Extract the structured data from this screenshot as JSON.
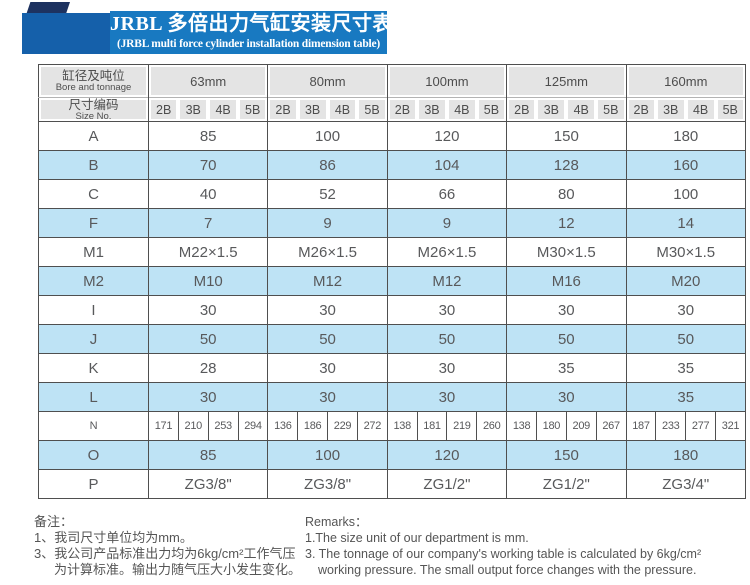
{
  "banner": {
    "title": "JRBL 多倍出力气缸安装尺寸表",
    "subtitle": "(JRBL multi force cylinder installation dimension table)"
  },
  "colors": {
    "banner_blue": "#1879c1",
    "square_blue": "#1560aa",
    "navy": "#1d3260",
    "header_grey": "#e4e4e4",
    "row_blue": "#bee3f5",
    "border_dark": "#4f4f4f",
    "text_grey": "#58595b"
  },
  "table": {
    "header": {
      "col1_row1_zh": "缸径及吨位",
      "col1_row1_en": "Bore and tonnage",
      "col1_row2_zh": "尺寸编码",
      "col1_row2_en": "Size No.",
      "bores": [
        "63mm",
        "80mm",
        "100mm",
        "125mm",
        "160mm"
      ],
      "size_codes": [
        "2B",
        "3B",
        "4B",
        "5B"
      ]
    },
    "rows": [
      {
        "label": "A",
        "shade": false,
        "values": [
          "85",
          "100",
          "120",
          "150",
          "180"
        ]
      },
      {
        "label": "B",
        "shade": true,
        "values": [
          "70",
          "86",
          "104",
          "128",
          "160"
        ]
      },
      {
        "label": "C",
        "shade": false,
        "values": [
          "40",
          "52",
          "66",
          "80",
          "100"
        ]
      },
      {
        "label": "F",
        "shade": true,
        "values": [
          "7",
          "9",
          "9",
          "12",
          "14"
        ]
      },
      {
        "label": "M1",
        "shade": false,
        "values": [
          "M22×1.5",
          "M26×1.5",
          "M26×1.5",
          "M30×1.5",
          "M30×1.5"
        ]
      },
      {
        "label": "M2",
        "shade": true,
        "values": [
          "M10",
          "M12",
          "M12",
          "M16",
          "M20"
        ]
      },
      {
        "label": "I",
        "shade": false,
        "values": [
          "30",
          "30",
          "30",
          "30",
          "30"
        ]
      },
      {
        "label": "J",
        "shade": true,
        "values": [
          "50",
          "50",
          "50",
          "50",
          "50"
        ]
      },
      {
        "label": "K",
        "shade": false,
        "values": [
          "28",
          "30",
          "30",
          "35",
          "35"
        ]
      },
      {
        "label": "L",
        "shade": true,
        "values": [
          "30",
          "30",
          "30",
          "30",
          "35"
        ]
      },
      {
        "label": "N",
        "shade": false,
        "values": [
          "171",
          "210",
          "253",
          "294",
          "136",
          "186",
          "229",
          "272",
          "138",
          "181",
          "219",
          "260",
          "138",
          "180",
          "209",
          "267",
          "187",
          "233",
          "277",
          "321"
        ]
      },
      {
        "label": "O",
        "shade": true,
        "values": [
          "85",
          "100",
          "120",
          "150",
          "180"
        ]
      },
      {
        "label": "P",
        "shade": false,
        "values": [
          "ZG3/8\"",
          "ZG3/8\"",
          "ZG1/2\"",
          "ZG1/2\"",
          "ZG3/4\""
        ]
      }
    ]
  },
  "remarks": {
    "zh": {
      "heading": "备注：",
      "line1": "1、我司尺寸单位均为mm。",
      "line2": "3、我公司产品标准出力均为6kg/cm²工作气压",
      "line3": "为计算标准。输出力随气压大小发生变化。"
    },
    "en": {
      "heading": "Remarks：",
      "line1": "1.The size unit of our department is mm.",
      "line2": "3. The tonnage of our company's working table is calculated by 6kg/cm²",
      "line3": "working pressure. The small output force changes with the pressure."
    }
  }
}
